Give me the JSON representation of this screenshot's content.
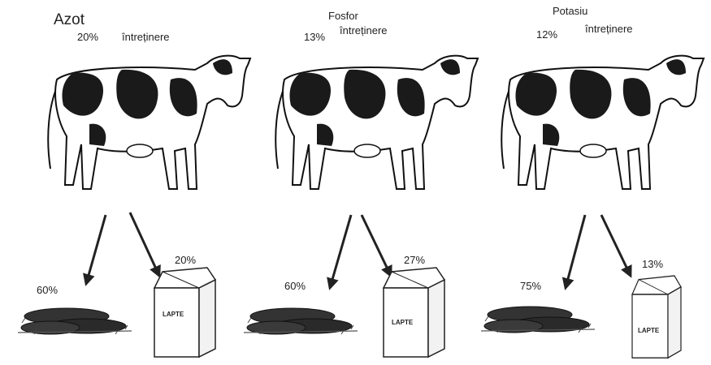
{
  "panels": [
    {
      "nutrient": "Azot",
      "maintenance_pct": "20%",
      "maintenance_label": "întreținere",
      "manure_pct": "60%",
      "milk_pct": "20%",
      "carton_label": "LAPTE"
    },
    {
      "nutrient": "Fosfor",
      "maintenance_pct": "13%",
      "maintenance_label": "întreținere",
      "manure_pct": "60%",
      "milk_pct": "27%",
      "carton_label": "LAPTE"
    },
    {
      "nutrient": "Potasiu",
      "maintenance_pct": "12%",
      "maintenance_label": "întreținere",
      "manure_pct": "75%",
      "milk_pct": "13%",
      "carton_label": "LAPTE"
    }
  ]
}
